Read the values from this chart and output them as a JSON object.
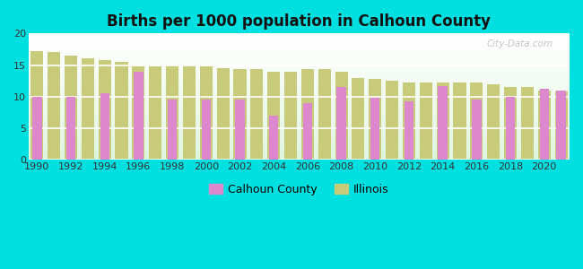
{
  "title": "Births per 1000 population in Calhoun County",
  "background_color": "#00e0e0",
  "county_color": "#dd88cc",
  "illinois_color": "#c8cc7a",
  "ylim": [
    0,
    20
  ],
  "yticks": [
    0,
    5,
    10,
    15,
    20
  ],
  "years": [
    1990,
    1991,
    1992,
    1993,
    1994,
    1995,
    1996,
    1997,
    1998,
    1999,
    2000,
    2001,
    2002,
    2003,
    2004,
    2005,
    2006,
    2007,
    2008,
    2009,
    2010,
    2011,
    2012,
    2013,
    2014,
    2015,
    2016,
    2017,
    2018,
    2019,
    2020,
    2021
  ],
  "calhoun_values": [
    10.0,
    null,
    10.0,
    null,
    10.5,
    null,
    14.0,
    null,
    9.5,
    null,
    9.5,
    null,
    9.5,
    null,
    7.0,
    null,
    9.0,
    null,
    11.5,
    null,
    9.8,
    null,
    9.3,
    null,
    11.7,
    null,
    9.5,
    null,
    10.0,
    null,
    11.2,
    11.0
  ],
  "illinois_values": [
    17.2,
    17.0,
    16.5,
    16.0,
    15.8,
    15.5,
    14.8,
    14.8,
    15.0,
    15.0,
    14.8,
    14.5,
    14.3,
    14.3,
    14.0,
    14.0,
    14.3,
    14.3,
    14.0,
    13.0,
    12.8,
    12.5,
    12.3,
    12.3,
    12.3,
    12.3,
    12.3,
    12.0,
    11.5,
    11.5,
    11.0,
    10.8
  ],
  "xtick_years": [
    1990,
    1992,
    1994,
    1996,
    1998,
    2000,
    2002,
    2004,
    2006,
    2008,
    2010,
    2012,
    2014,
    2016,
    2018,
    2020
  ],
  "legend_county": "Calhoun County",
  "legend_illinois": "Illinois",
  "watermark": "City-Data.com"
}
